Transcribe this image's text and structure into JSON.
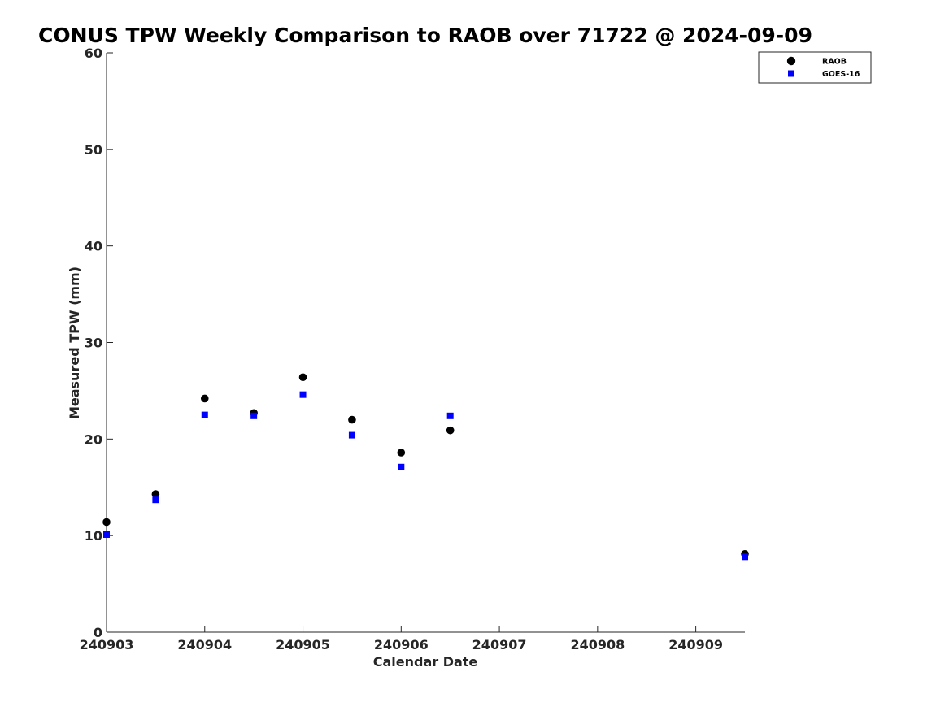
{
  "chart_data": {
    "type": "scatter",
    "title": "CONUS TPW Weekly Comparison to RAOB over 71722 @ 2024-09-09",
    "xlabel": "Calendar Date",
    "ylabel": "Measured TPW (mm)",
    "xlim": [
      0,
      6.5
    ],
    "ylim": [
      0,
      60
    ],
    "x_tick_values": [
      0,
      1,
      2,
      3,
      4,
      5,
      6
    ],
    "x_tick_labels": [
      "240903",
      "240904",
      "240905",
      "240906",
      "240907",
      "240908",
      "240909"
    ],
    "y_ticks": [
      0,
      10,
      20,
      30,
      40,
      50,
      60
    ],
    "grid": false,
    "legend_position": "top-right",
    "series": [
      {
        "name": "RAOB",
        "marker": "circle",
        "color": "#000000",
        "x": [
          0,
          0.5,
          1,
          1.5,
          2,
          2.5,
          3,
          3.5,
          6.5
        ],
        "y": [
          11.4,
          14.3,
          24.2,
          22.7,
          26.4,
          22.0,
          18.6,
          20.9,
          8.1
        ]
      },
      {
        "name": "GOES-16",
        "marker": "square",
        "color": "#0000ff",
        "x": [
          0,
          0.5,
          1,
          1.5,
          2,
          2.5,
          3,
          3.5,
          6.5
        ],
        "y": [
          10.1,
          13.7,
          22.5,
          22.4,
          24.6,
          20.4,
          17.1,
          22.4,
          7.8
        ]
      }
    ]
  }
}
